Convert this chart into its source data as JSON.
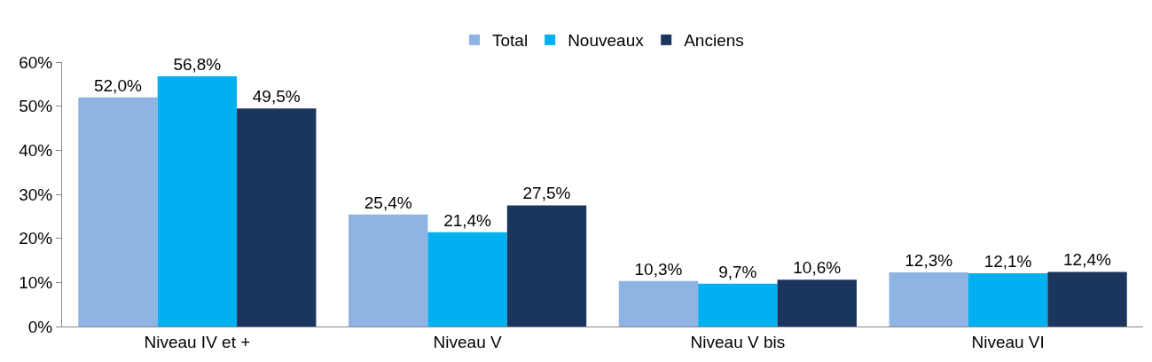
{
  "chart_data": {
    "type": "bar",
    "categories": [
      "Niveau IV et +",
      "Niveau V",
      "Niveau V bis",
      "Niveau VI"
    ],
    "series": [
      {
        "name": "Total",
        "color": "#8eb4e3",
        "values": [
          52.0,
          25.4,
          10.3,
          12.3
        ],
        "value_labels": [
          "52,0%",
          "25,4%",
          "10,3%",
          "12,3%"
        ]
      },
      {
        "name": "Nouveaux",
        "color": "#00b0f0",
        "values": [
          56.8,
          21.4,
          9.7,
          12.1
        ],
        "value_labels": [
          "56,8%",
          "21,4%",
          "9,7%",
          "12,1%"
        ]
      },
      {
        "name": "Anciens",
        "color": "#1b365d",
        "values": [
          49.5,
          27.5,
          10.6,
          12.4
        ],
        "value_labels": [
          "49,5%",
          "27,5%",
          "10,6%",
          "12,4%"
        ]
      }
    ],
    "ylim": [
      0,
      60
    ],
    "yticks": [
      {
        "value": 0,
        "label": "0%"
      },
      {
        "value": 10,
        "label": "10%"
      },
      {
        "value": 20,
        "label": "20%"
      },
      {
        "value": 30,
        "label": "30%"
      },
      {
        "value": 40,
        "label": "40%"
      },
      {
        "value": 50,
        "label": "50%"
      },
      {
        "value": 60,
        "label": "60%"
      }
    ],
    "grid": false,
    "legend": "top"
  }
}
